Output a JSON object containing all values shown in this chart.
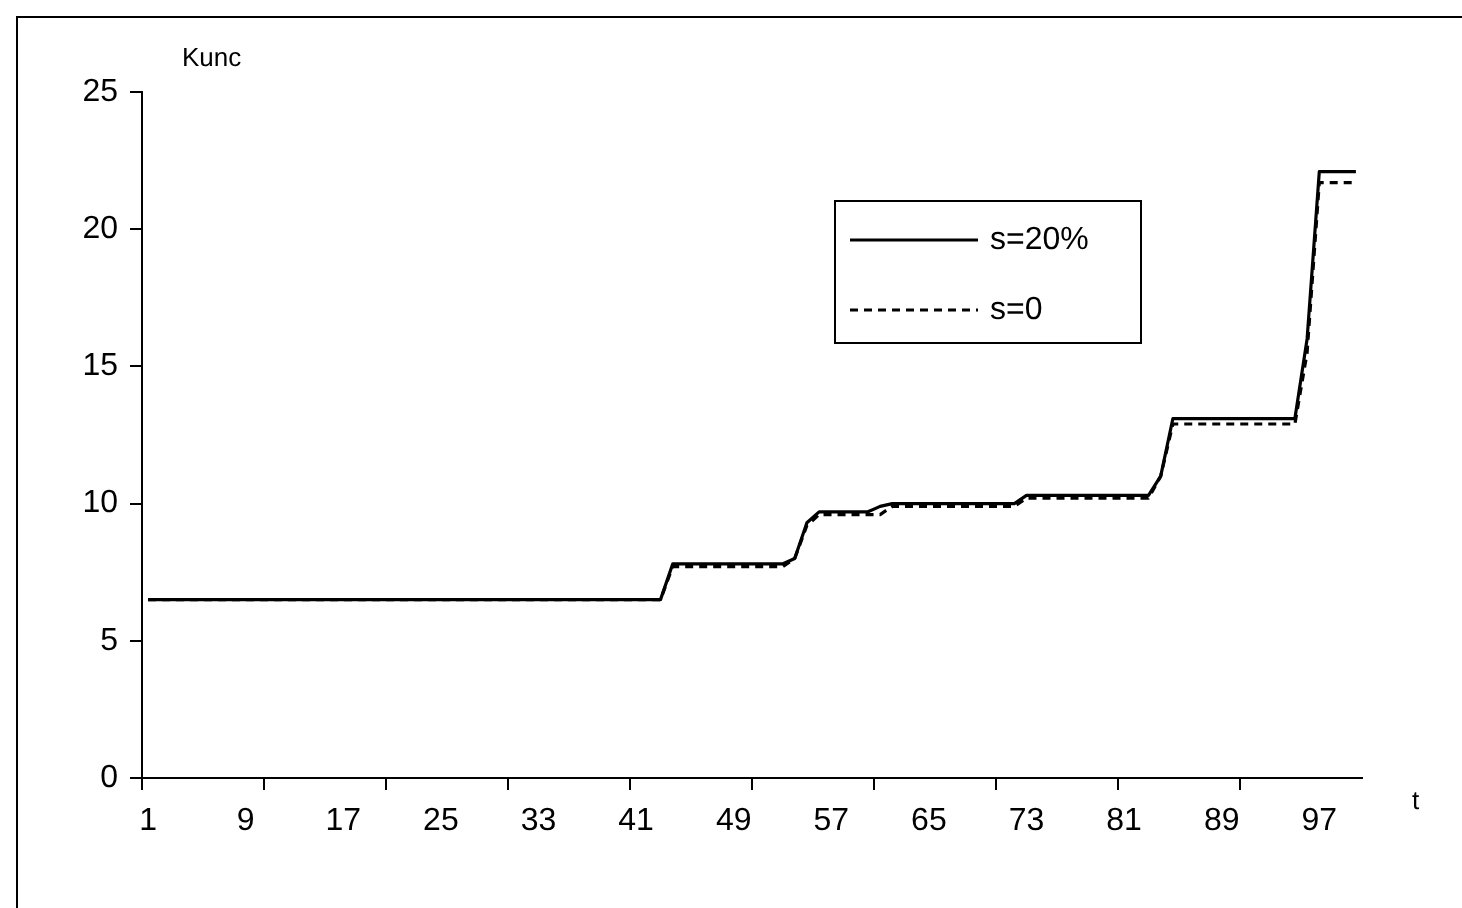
{
  "chart_data": {
    "type": "line",
    "xlabel": "t",
    "ylabel": "Kunc",
    "categories": [
      "1",
      null,
      null,
      null,
      null,
      null,
      null,
      null,
      "9",
      null,
      null,
      null,
      null,
      null,
      null,
      null,
      "17",
      null,
      null,
      null,
      null,
      null,
      null,
      null,
      "25",
      null,
      null,
      null,
      null,
      null,
      null,
      null,
      "33",
      null,
      null,
      null,
      null,
      null,
      null,
      null,
      "41",
      null,
      null,
      null,
      null,
      null,
      null,
      null,
      "49",
      null,
      null,
      null,
      null,
      null,
      null,
      null,
      "57",
      null,
      null,
      null,
      null,
      null,
      null,
      null,
      "65",
      null,
      null,
      null,
      null,
      null,
      null,
      null,
      "73",
      null,
      null,
      null,
      null,
      null,
      null,
      null,
      "81",
      null,
      null,
      null,
      null,
      null,
      null,
      null,
      "89",
      null,
      null,
      null,
      null,
      null,
      null,
      null,
      "97",
      null,
      null,
      null
    ],
    "series": [
      {
        "name": "s=20%",
        "color": "#000000",
        "line_style": "solid",
        "values": [
          6.5,
          6.5,
          6.5,
          6.5,
          6.5,
          6.5,
          6.5,
          6.5,
          6.5,
          6.5,
          6.5,
          6.5,
          6.5,
          6.5,
          6.5,
          6.5,
          6.5,
          6.5,
          6.5,
          6.5,
          6.5,
          6.5,
          6.5,
          6.5,
          6.5,
          6.5,
          6.5,
          6.5,
          6.5,
          6.5,
          6.5,
          6.5,
          6.5,
          6.5,
          6.5,
          6.5,
          6.5,
          6.5,
          6.5,
          6.5,
          6.5,
          6.5,
          6.5,
          7.8,
          7.8,
          7.8,
          7.8,
          7.8,
          7.8,
          7.8,
          7.8,
          7.8,
          7.8,
          8.0,
          9.3,
          9.7,
          9.7,
          9.7,
          9.7,
          9.7,
          9.9,
          10.0,
          10.0,
          10.0,
          10.0,
          10.0,
          10.0,
          10.0,
          10.0,
          10.0,
          10.0,
          10.0,
          10.3,
          10.3,
          10.3,
          10.3,
          10.3,
          10.3,
          10.3,
          10.3,
          10.3,
          10.3,
          10.3,
          11.0,
          13.1,
          13.1,
          13.1,
          13.1,
          13.1,
          13.1,
          13.1,
          13.1,
          13.1,
          13.1,
          13.1,
          16.0,
          22.1,
          22.1,
          22.1,
          22.1
        ]
      },
      {
        "name": "s=0",
        "color": "#000000",
        "line_style": "dashed",
        "values": [
          6.5,
          6.5,
          6.5,
          6.5,
          6.5,
          6.5,
          6.5,
          6.5,
          6.5,
          6.5,
          6.5,
          6.5,
          6.5,
          6.5,
          6.5,
          6.5,
          6.5,
          6.5,
          6.5,
          6.5,
          6.5,
          6.5,
          6.5,
          6.5,
          6.5,
          6.5,
          6.5,
          6.5,
          6.5,
          6.5,
          6.5,
          6.5,
          6.5,
          6.5,
          6.5,
          6.5,
          6.5,
          6.5,
          6.5,
          6.5,
          6.5,
          6.5,
          6.5,
          7.7,
          7.7,
          7.7,
          7.7,
          7.7,
          7.7,
          7.7,
          7.7,
          7.7,
          7.7,
          8.0,
          9.2,
          9.6,
          9.6,
          9.6,
          9.6,
          9.6,
          9.6,
          9.9,
          9.9,
          9.9,
          9.9,
          9.9,
          9.9,
          9.9,
          9.9,
          9.9,
          9.9,
          9.9,
          10.2,
          10.2,
          10.2,
          10.2,
          10.2,
          10.2,
          10.2,
          10.2,
          10.2,
          10.2,
          10.2,
          11.0,
          12.9,
          12.9,
          12.9,
          12.9,
          12.9,
          12.9,
          12.9,
          12.9,
          12.9,
          12.9,
          12.9,
          15.5,
          21.7,
          21.7,
          21.7,
          21.7
        ]
      }
    ],
    "ylim": [
      0,
      25
    ],
    "yticks": [
      0,
      5,
      10,
      15,
      20,
      25
    ],
    "grid": false,
    "legend": "top right",
    "marker": "none"
  }
}
